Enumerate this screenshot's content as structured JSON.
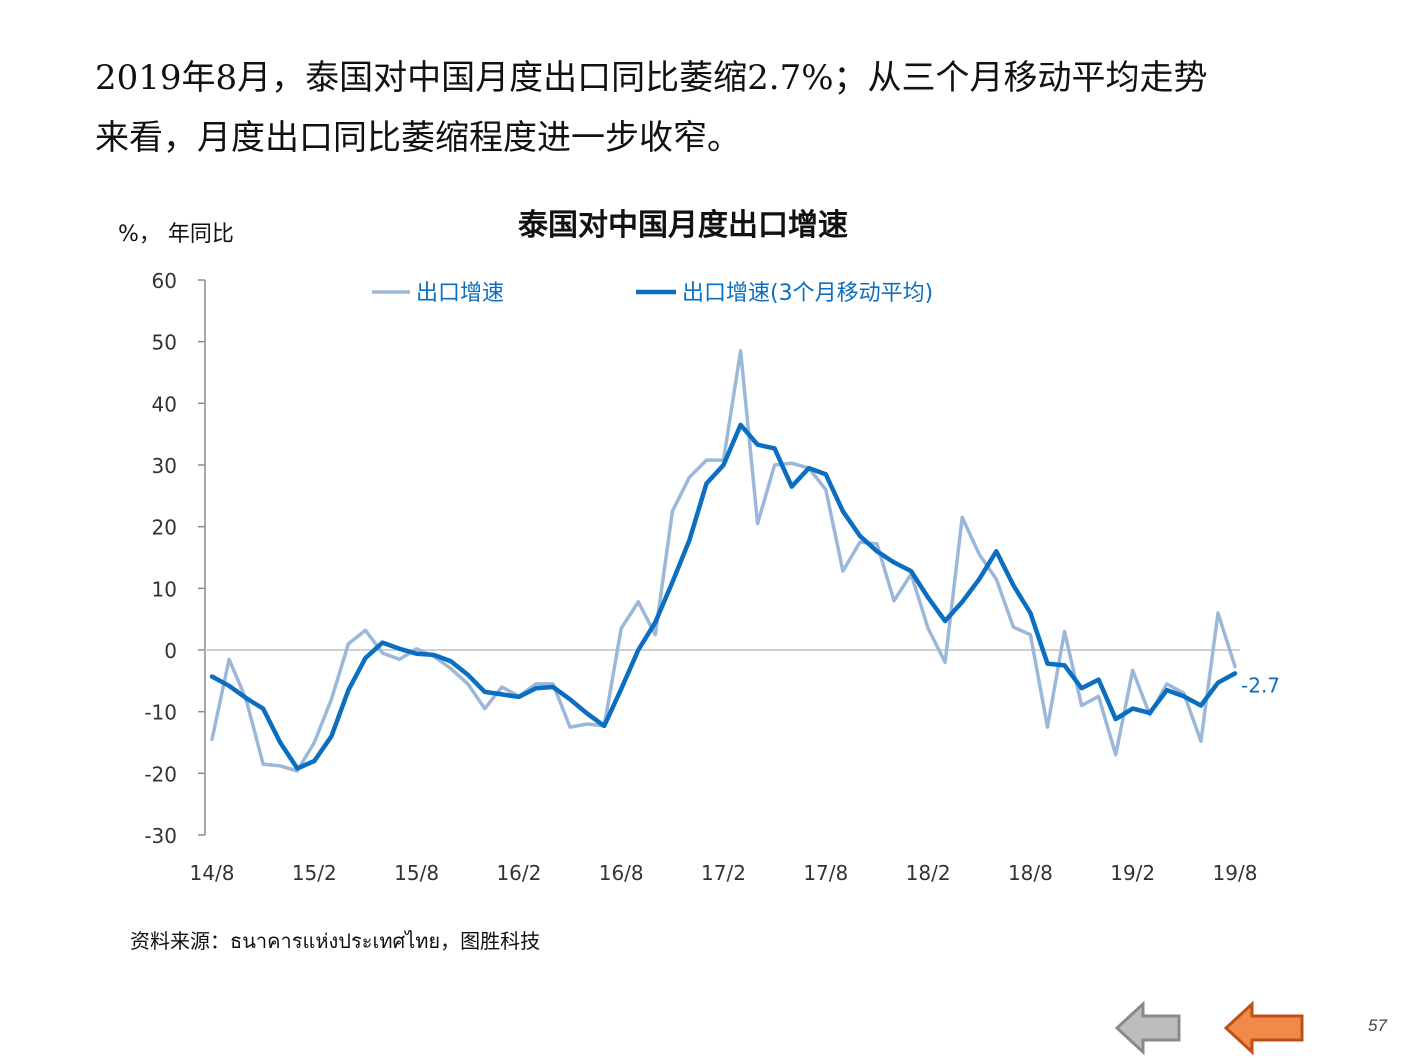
{
  "headline": {
    "line1": "2019年8月，泰国对中国月度出口同比萎缩2.7%；从三个月移动平均走势",
    "line2": "来看，月度出口同比萎缩程度进一步收窄。"
  },
  "source": "资料来源：ธนาคารแห่งประเทศไทย，图胜科技",
  "page_number": "57",
  "nav": {
    "back_icon": "left-arrow-icon",
    "next_icon": "left-arrow-icon"
  },
  "colors": {
    "raw_series": "#9BB7D9",
    "ma_series": "#0B6EC0",
    "axis": "#8c8c8c",
    "zero_line": "#d0d0d0",
    "nav_back": "#BDBDBD",
    "nav_next": "#F08A4B"
  },
  "chart_data": {
    "type": "line",
    "title": "泰国对中国月度出口增速",
    "ylabel": "%，  年同比",
    "ylim": [
      -30,
      60
    ],
    "yticks": [
      "60",
      "50",
      "40",
      "30",
      "20",
      "10",
      "0",
      "-10",
      "-20",
      "-30"
    ],
    "xtick_labels": [
      "14/8",
      "15/2",
      "15/8",
      "16/2",
      "16/8",
      "17/2",
      "17/8",
      "18/2",
      "18/8",
      "19/2",
      "19/8"
    ],
    "x": [
      "14/8",
      "14/9",
      "14/10",
      "14/11",
      "14/12",
      "15/1",
      "15/2",
      "15/3",
      "15/4",
      "15/5",
      "15/6",
      "15/7",
      "15/8",
      "15/9",
      "15/10",
      "15/11",
      "15/12",
      "16/1",
      "16/2",
      "16/3",
      "16/4",
      "16/5",
      "16/6",
      "16/7",
      "16/8",
      "16/9",
      "16/10",
      "16/11",
      "16/12",
      "17/1",
      "17/2",
      "17/3",
      "17/4",
      "17/5",
      "17/6",
      "17/7",
      "17/8",
      "17/9",
      "17/10",
      "17/11",
      "17/12",
      "18/1",
      "18/2",
      "18/3",
      "18/4",
      "18/5",
      "18/6",
      "18/7",
      "18/8",
      "18/9",
      "18/10",
      "18/11",
      "18/12",
      "19/1",
      "19/2",
      "19/3",
      "19/4",
      "19/5",
      "19/6",
      "19/7",
      "19/8"
    ],
    "legend_position": "top",
    "end_label": "-2.7",
    "series": [
      {
        "name": "出口增速",
        "values": [
          -14.5,
          -1.5,
          -8,
          -18.5,
          -18.8,
          -19.6,
          -15,
          -8,
          1,
          3.2,
          -0.5,
          -1.5,
          0.2,
          -1,
          -3,
          -5.5,
          -9.5,
          -6,
          -7.5,
          -5.5,
          -5.5,
          -12.5,
          -12,
          -12.3,
          3.5,
          7.8,
          2.5,
          22.5,
          28,
          30.8,
          30.8,
          48.5,
          20.5,
          30,
          30.3,
          29.5,
          26,
          12.8,
          17.5,
          17.2,
          8,
          12.3,
          3.5,
          -2,
          21.5,
          15.5,
          11.5,
          3.7,
          2.5,
          -12.5,
          3,
          -9,
          -7.5,
          -17,
          -3.3,
          -10.5,
          -5.5,
          -7,
          -14.8,
          6,
          -2.7
        ]
      },
      {
        "name": "出口增速(3个月移动平均)",
        "values": [
          -4.3,
          -5.8,
          -7.8,
          -9.5,
          -15,
          -19.2,
          -18,
          -14,
          -6.5,
          -1.3,
          1.2,
          0.2,
          -0.6,
          -0.8,
          -1.8,
          -4,
          -6.8,
          -7.2,
          -7.6,
          -6.2,
          -6,
          -8,
          -10.3,
          -12.3,
          -6.3,
          0,
          4.5,
          11,
          17.8,
          27,
          30,
          36.5,
          33.3,
          32.7,
          26.5,
          29.5,
          28.5,
          22.5,
          18.5,
          16,
          14.2,
          12.8,
          8.5,
          4.7,
          7.8,
          11.5,
          16,
          10.5,
          6,
          -2.2,
          -2.5,
          -6.2,
          -4.8,
          -11.2,
          -9.5,
          -10.2,
          -6.5,
          -7.5,
          -9,
          -5.3,
          -3.8
        ]
      }
    ]
  }
}
